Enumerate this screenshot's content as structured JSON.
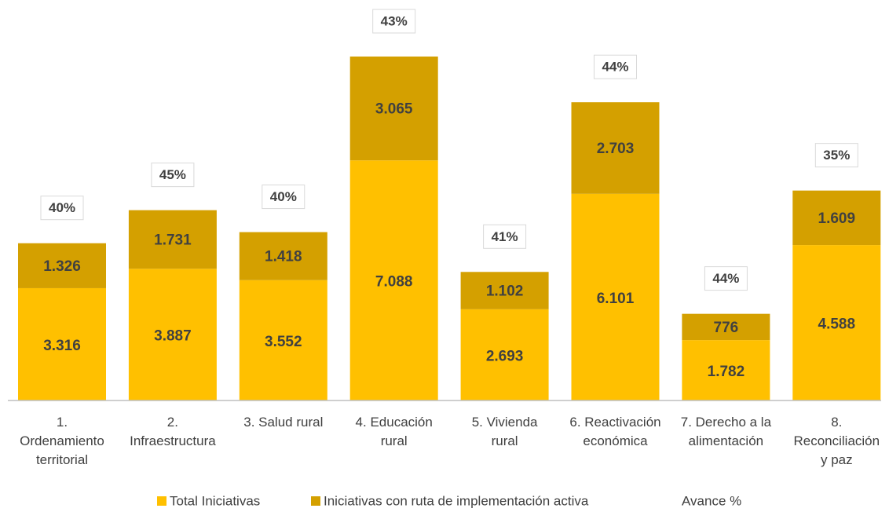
{
  "chart_data": {
    "type": "bar",
    "stacked": true,
    "categories": [
      "1. Ordenamiento territorial",
      "2. Infraestructura",
      "3. Salud rural",
      "4. Educación rural",
      "5. Vivienda rural",
      "6. Reactivación económica",
      "7. Derecho a la alimentación",
      "8. Reconciliación y paz"
    ],
    "category_lines": [
      [
        "1.",
        "Ordenamiento",
        "territorial"
      ],
      [
        "2.",
        "Infraestructura"
      ],
      [
        "3. Salud rural"
      ],
      [
        "4. Educación",
        "rural"
      ],
      [
        "5. Vivienda",
        "rural"
      ],
      [
        "6. Reactivación",
        "económica"
      ],
      [
        "7. Derecho a la",
        "alimentación"
      ],
      [
        "8.",
        "Reconciliación",
        "y paz"
      ]
    ],
    "series": [
      {
        "name": "Total Iniciativas",
        "color": "#FFC000",
        "values": [
          3316,
          3887,
          3552,
          7088,
          2693,
          6101,
          1782,
          4588
        ],
        "labels": [
          "3.316",
          "3.887",
          "3.552",
          "7.088",
          "2.693",
          "6.101",
          "1.782",
          "4.588"
        ]
      },
      {
        "name": "Iniciativas con ruta de implementación activa",
        "color": "#D4A000",
        "values": [
          1326,
          1731,
          1418,
          3065,
          1102,
          2703,
          776,
          1609
        ],
        "labels": [
          "1.326",
          "1.731",
          "1.418",
          "3.065",
          "1.102",
          "2.703",
          "776",
          "1.609"
        ]
      },
      {
        "name": "Avance %",
        "values": [
          40,
          45,
          40,
          43,
          41,
          44,
          44,
          35
        ],
        "labels": [
          "40%",
          "45%",
          "40%",
          "43%",
          "41%",
          "44%",
          "44%",
          "35%"
        ]
      }
    ],
    "ylim": [
      0,
      10153
    ],
    "legend_position": "bottom",
    "grid": false,
    "axis_color": "#BFBFBF",
    "text_color": "#404040"
  }
}
